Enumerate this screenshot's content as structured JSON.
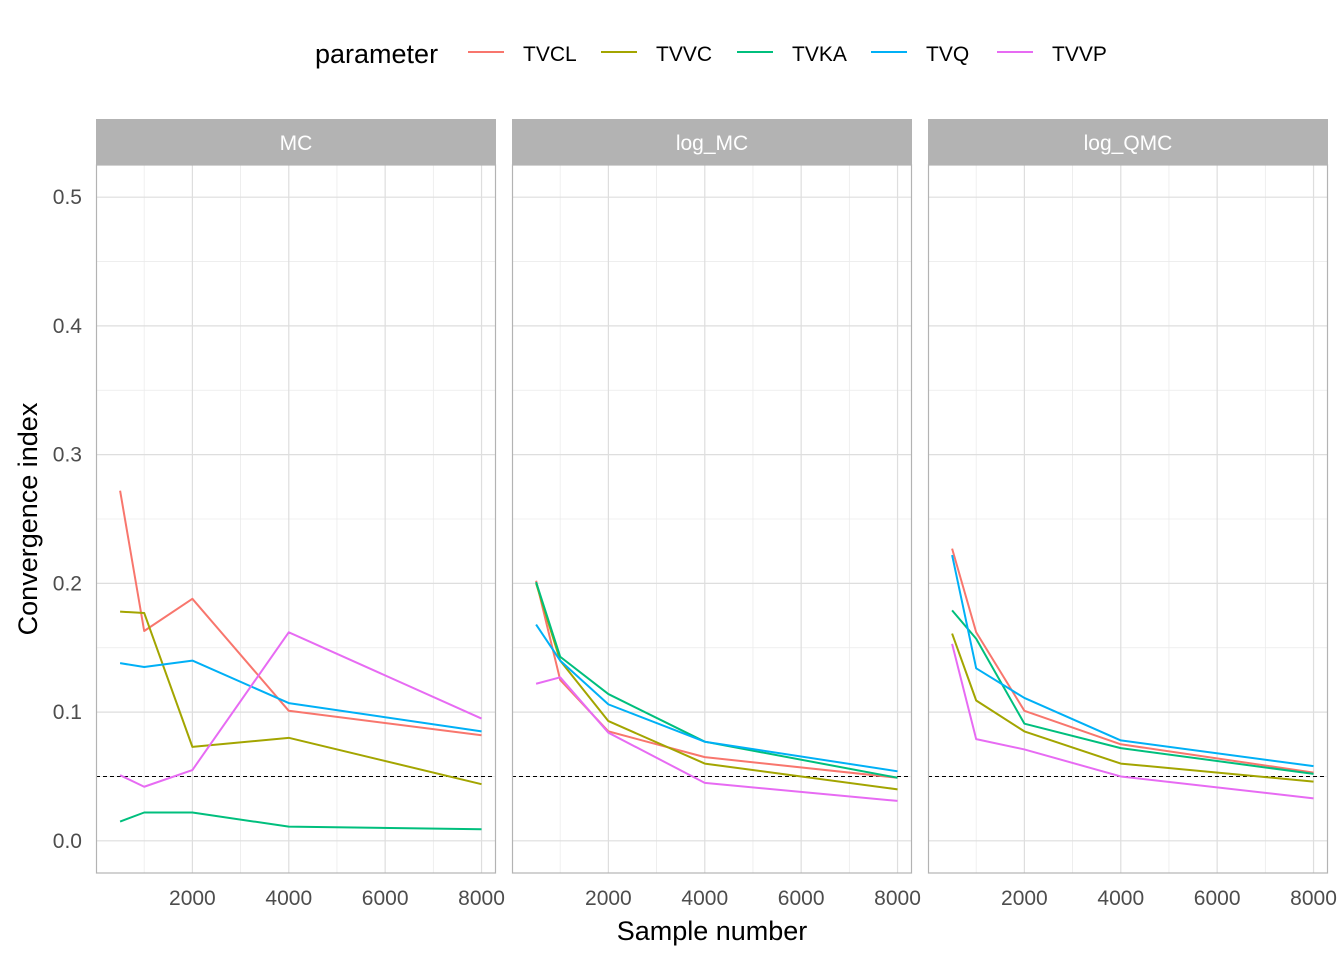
{
  "chart_data": {
    "type": "line",
    "xlabel": "Sample number",
    "ylabel": "Convergence index",
    "legend": {
      "title": "parameter",
      "position": "top",
      "entries": [
        "TVCL",
        "TVVC",
        "TVKA",
        "TVQ",
        "TVVP"
      ]
    },
    "grid": true,
    "xlim": [
      0,
      8300
    ],
    "ylim": [
      -0.025,
      0.525
    ],
    "x_ticks": [
      2000,
      4000,
      6000,
      8000
    ],
    "y_ticks": [
      0.0,
      0.1,
      0.2,
      0.3,
      0.4,
      0.5
    ],
    "x_tick_labels": [
      "2000",
      "4000",
      "6000",
      "8000"
    ],
    "y_tick_labels": [
      "0.0",
      "0.1",
      "0.2",
      "0.3",
      "0.4",
      "0.5"
    ],
    "reference_line": {
      "y": 0.05,
      "style": "dashed"
    },
    "x": [
      500,
      1000,
      2000,
      4000,
      8000
    ],
    "colors": {
      "TVCL": "#F8766D",
      "TVVC": "#A3A500",
      "TVKA": "#00BF7D",
      "TVQ": "#00B0F6",
      "TVVP": "#E76BF3"
    },
    "panels": [
      {
        "label": "MC",
        "series": [
          {
            "name": "TVCL",
            "values": [
              0.272,
              0.163,
              0.188,
              0.101,
              0.082
            ]
          },
          {
            "name": "TVVC",
            "values": [
              0.178,
              0.177,
              0.073,
              0.08,
              0.044
            ]
          },
          {
            "name": "TVKA",
            "values": [
              0.015,
              0.022,
              0.022,
              0.011,
              0.009
            ]
          },
          {
            "name": "TVQ",
            "values": [
              0.138,
              0.135,
              0.14,
              0.107,
              0.085
            ]
          },
          {
            "name": "TVVP",
            "values": [
              0.051,
              0.042,
              0.055,
              0.162,
              0.095
            ]
          }
        ]
      },
      {
        "label": "log_MC",
        "series": [
          {
            "name": "TVCL",
            "values": [
              0.202,
              0.125,
              0.085,
              0.065,
              0.049
            ]
          },
          {
            "name": "TVVC",
            "values": [
              0.2,
              0.14,
              0.093,
              0.06,
              0.04
            ]
          },
          {
            "name": "TVKA",
            "values": [
              0.201,
              0.143,
              0.114,
              0.077,
              0.049
            ]
          },
          {
            "name": "TVQ",
            "values": [
              0.168,
              0.14,
              0.106,
              0.077,
              0.054
            ]
          },
          {
            "name": "TVVP",
            "values": [
              0.122,
              0.127,
              0.084,
              0.045,
              0.031
            ]
          }
        ]
      },
      {
        "label": "log_QMC",
        "series": [
          {
            "name": "TVCL",
            "values": [
              0.227,
              0.162,
              0.101,
              0.075,
              0.053
            ]
          },
          {
            "name": "TVVC",
            "values": [
              0.161,
              0.109,
              0.085,
              0.06,
              0.046
            ]
          },
          {
            "name": "TVKA",
            "values": [
              0.179,
              0.157,
              0.091,
              0.072,
              0.052
            ]
          },
          {
            "name": "TVQ",
            "values": [
              0.222,
              0.134,
              0.111,
              0.078,
              0.058
            ]
          },
          {
            "name": "TVVP",
            "values": [
              0.153,
              0.079,
              0.071,
              0.05,
              0.033
            ]
          }
        ]
      }
    ]
  }
}
